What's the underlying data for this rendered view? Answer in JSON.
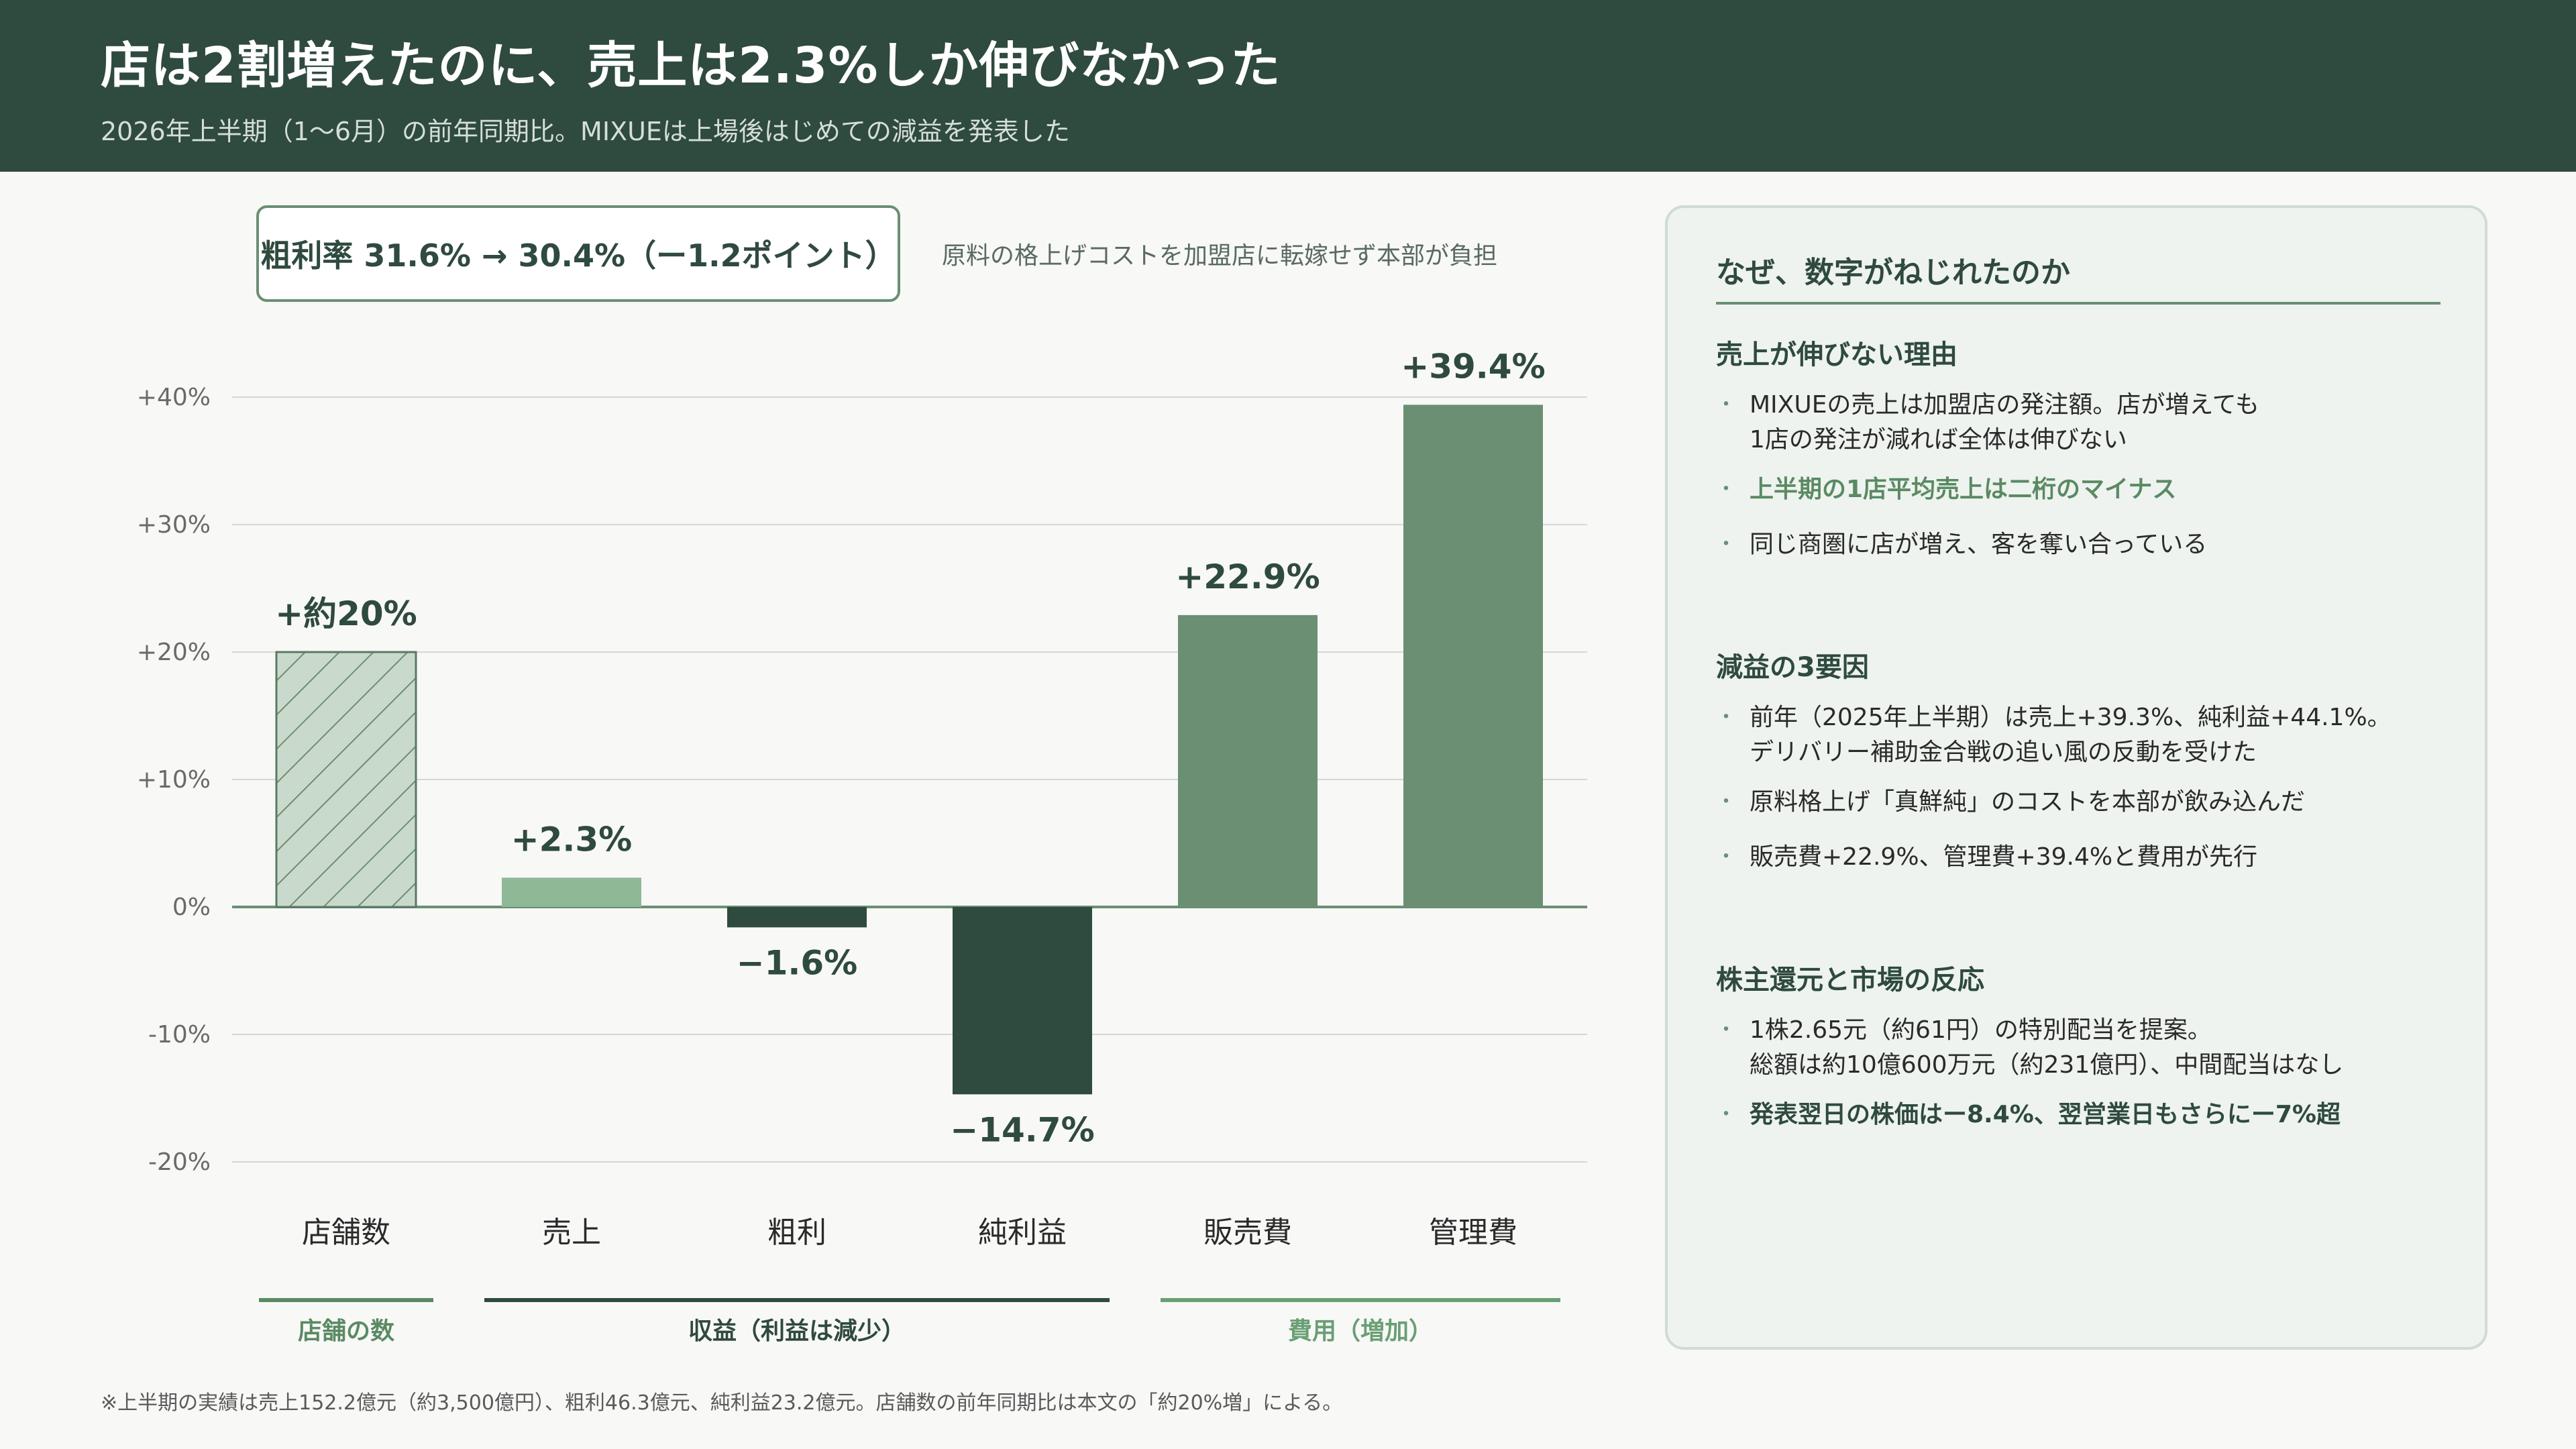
{
  "header": {
    "title": "店は2割増えたのに、売上は2.3%しか伸びなかった",
    "subtitle": "2026年上半期（1〜6月）の前年同期比。MIXUEは上場後はじめての減益を発表した"
  },
  "margin_box": {
    "text": "粗利率 31.6%  →  30.4%（ー1.2ポイント）",
    "note": "原料の格上げコストを加盟店に転嫁せず本部が負担"
  },
  "chart_data": {
    "type": "bar",
    "categories": [
      "店舗数",
      "売上",
      "粗利",
      "純利益",
      "販売費",
      "管理費"
    ],
    "values": [
      20,
      2.3,
      -1.6,
      -14.7,
      22.9,
      39.4
    ],
    "value_labels": [
      "+約20%",
      "+2.3%",
      "−1.6%",
      "−14.7%",
      "+22.9%",
      "+39.4%"
    ],
    "bar_colors": [
      "#c9d9cc",
      "#8fb897",
      "#2f4a3e",
      "#2f4a3e",
      "#6a8f72",
      "#6a8f72"
    ],
    "hatched": [
      true,
      false,
      false,
      false,
      false,
      false
    ],
    "ylim": [
      -20,
      40
    ],
    "yticks": [
      40,
      30,
      20,
      10,
      0,
      -10,
      -20
    ],
    "ytick_labels": [
      "+40%",
      "+30%",
      "+20%",
      "+10%",
      "0%",
      "-10%",
      "-20%"
    ],
    "grid": true,
    "groups": [
      {
        "label": "店舗の数",
        "first": 0,
        "last": 0,
        "color": "#5a8a63"
      },
      {
        "label": "収益（利益は減少）",
        "first": 1,
        "last": 3,
        "color": "#2f4a3e"
      },
      {
        "label": "費用（増加）",
        "first": 4,
        "last": 5,
        "color": "#6a9f74"
      }
    ]
  },
  "footnote": "※上半期の実績は売上152.2億元（約3,500億円）、粗利46.3億元、純利益23.2億元。店舗数の前年同期比は本文の「約20%増」による。",
  "panel": {
    "title": "なぜ、数字がねじれたのか",
    "sections": [
      {
        "title": "売上が伸びない理由",
        "bullets": [
          {
            "text": "MIXUEの売上は加盟店の発注額。店が増えても\n1店の発注が減れば全体は伸びない",
            "style": "normal"
          },
          {
            "text": "上半期の1店平均売上は二桁のマイナス",
            "style": "accent"
          },
          {
            "text": "同じ商圏に店が増え、客を奪い合っている",
            "style": "normal"
          }
        ]
      },
      {
        "title": "減益の3要因",
        "bullets": [
          {
            "text": "前年（2025年上半期）は売上+39.3%、純利益+44.1%。\nデリバリー補助金合戦の追い風の反動を受けた",
            "style": "normal"
          },
          {
            "text": "原料格上げ「真鮮純」のコストを本部が飲み込んだ",
            "style": "normal"
          },
          {
            "text": "販売費+22.9%、管理費+39.4%と費用が先行",
            "style": "normal"
          }
        ]
      },
      {
        "title": "株主還元と市場の反応",
        "bullets": [
          {
            "text": "1株2.65元（約61円）の特別配当を提案。\n総額は約10億600万元（約231億円）、中間配当はなし",
            "style": "normal"
          },
          {
            "text": "発表翌日の株価はー8.4%、翌営業日もさらにー7%超",
            "style": "strong"
          }
        ]
      }
    ]
  }
}
